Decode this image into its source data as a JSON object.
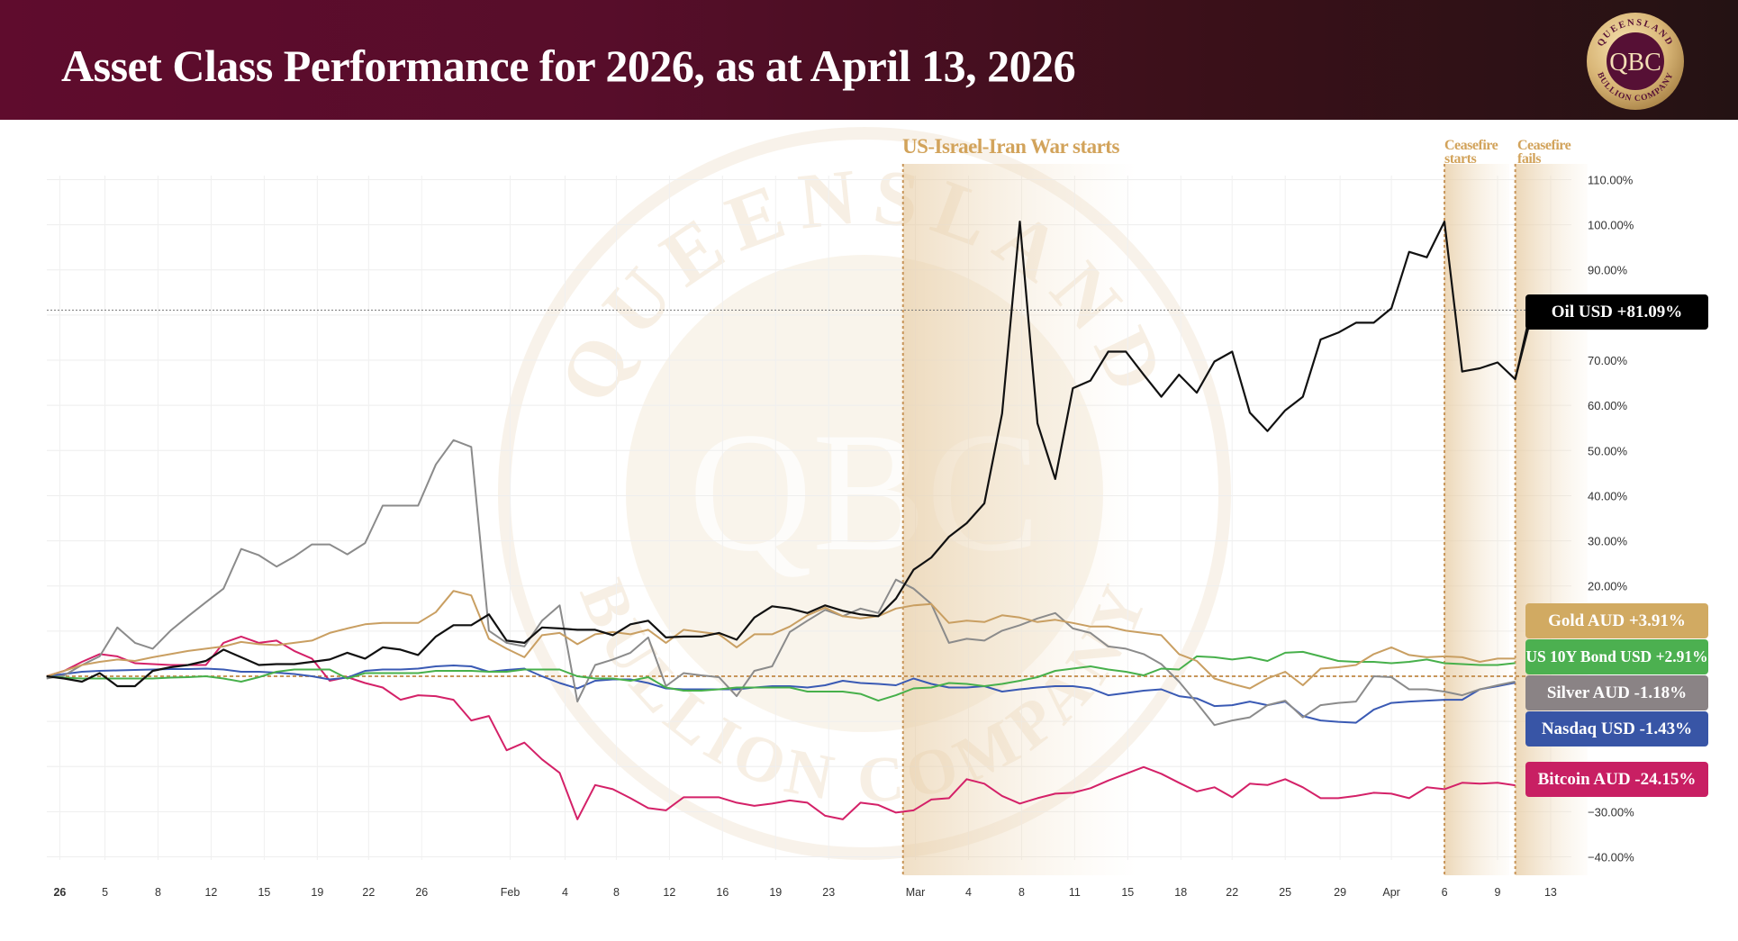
{
  "header": {
    "title": "Asset Class Performance for 2026, as at April 13, 2026"
  },
  "logo": {
    "ring_top": "QUEENSLAND",
    "ring_bottom": "BULLION COMPANY",
    "monogram": "QBC"
  },
  "colors": {
    "header_start": "#5f0c2d",
    "header_end": "#241213",
    "event": "#d2a35b",
    "zero_line": "#c8965a"
  },
  "events": [
    {
      "label": "US-Israel-Iran War starts",
      "index": 48.4
    },
    {
      "label": "Ceasefire starts",
      "index": 79.0
    },
    {
      "label": "Ceasefire fails",
      "index": 83.0
    }
  ],
  "tags": {
    "oil": {
      "text": "Oil USD +81.09%",
      "color": "#000000"
    },
    "gold": {
      "text": "Gold AUD +3.91%",
      "color": "#d1aa62"
    },
    "bond": {
      "text": "US 10Y Bond USD +2.91%",
      "color": "#4cb050"
    },
    "silver": {
      "text": "Silver AUD -1.18%",
      "color": "#8a8385"
    },
    "nasdaq": {
      "text": "Nasdaq USD -1.43%",
      "color": "#3855a6"
    },
    "bitcoin": {
      "text": "Bitcoin AUD -24.15%",
      "color": "#c81f63"
    }
  },
  "chart_data": {
    "type": "line",
    "title": "Asset Class Performance for 2026, as at April 13, 2026",
    "xlabel": "",
    "ylabel": "",
    "ylim": [
      -45,
      112
    ],
    "y_ticks": [
      {
        "value": 110,
        "label": "110.00%"
      },
      {
        "value": 100,
        "label": "100.00%"
      },
      {
        "value": 90,
        "label": "90.00%"
      },
      {
        "value": 70,
        "label": "70.00%"
      },
      {
        "value": 60,
        "label": "60.00%"
      },
      {
        "value": 50,
        "label": "50.00%"
      },
      {
        "value": 40,
        "label": "40.00%"
      },
      {
        "value": 30,
        "label": "30.00%"
      },
      {
        "value": 20,
        "label": "20.00%"
      },
      {
        "value": -30,
        "label": "−30.00%"
      },
      {
        "value": -40,
        "label": "−40.00%"
      }
    ],
    "grid_values": [
      110,
      100,
      90,
      80,
      70,
      60,
      50,
      40,
      30,
      20,
      10,
      0,
      -10,
      -20,
      -30,
      -40
    ],
    "x_ticks": [
      {
        "label": "26",
        "index": 0.75,
        "bold": true
      },
      {
        "label": "5",
        "index": 3.3
      },
      {
        "label": "8",
        "index": 6.3
      },
      {
        "label": "12",
        "index": 9.3
      },
      {
        "label": "15",
        "index": 12.3
      },
      {
        "label": "19",
        "index": 15.3
      },
      {
        "label": "22",
        "index": 18.2
      },
      {
        "label": "26",
        "index": 21.2
      },
      {
        "label": "Feb",
        "index": 26.2
      },
      {
        "label": "4",
        "index": 29.3
      },
      {
        "label": "8",
        "index": 32.2
      },
      {
        "label": "12",
        "index": 35.2
      },
      {
        "label": "16",
        "index": 38.2
      },
      {
        "label": "19",
        "index": 41.2
      },
      {
        "label": "23",
        "index": 44.2
      },
      {
        "label": "Mar",
        "index": 49.1
      },
      {
        "label": "4",
        "index": 52.1
      },
      {
        "label": "8",
        "index": 55.1
      },
      {
        "label": "11",
        "index": 58.1
      },
      {
        "label": "15",
        "index": 61.1
      },
      {
        "label": "18",
        "index": 64.1
      },
      {
        "label": "22",
        "index": 67.0
      },
      {
        "label": "25",
        "index": 70.0
      },
      {
        "label": "29",
        "index": 73.1
      },
      {
        "label": "Apr",
        "index": 76.0
      },
      {
        "label": "6",
        "index": 79.0
      },
      {
        "label": "9",
        "index": 82.0
      },
      {
        "label": "13",
        "index": 85.0
      }
    ],
    "series": [
      {
        "name": "Oil USD",
        "key": "oil",
        "color": "#111111",
        "final": 81.09,
        "values": [
          0,
          -0.5,
          -1.2,
          0.7,
          -2.2,
          -2.2,
          1.2,
          2.0,
          2.5,
          3.4,
          5.9,
          4.2,
          2.5,
          2.7,
          2.7,
          3.2,
          3.7,
          5.2,
          3.9,
          6.4,
          5.9,
          4.7,
          8.8,
          11.3,
          11.3,
          13.7,
          7.9,
          7.4,
          10.8,
          10.6,
          10.3,
          10.3,
          9.1,
          11.5,
          12.3,
          8.6,
          8.8,
          8.8,
          9.6,
          8.1,
          13.0,
          15.5,
          15.0,
          14.0,
          15.7,
          14.5,
          13.7,
          13.3,
          17.2,
          23.6,
          26.3,
          30.9,
          33.9,
          38.3,
          58.2,
          100.7,
          56.0,
          43.7,
          63.8,
          65.5,
          71.9,
          71.9,
          66.8,
          61.9,
          66.8,
          62.8,
          69.7,
          71.9,
          58.4,
          54.3,
          58.9,
          61.9,
          74.6,
          76.1,
          78.3,
          78.3,
          81.5,
          94.0,
          92.8,
          100.7,
          67.5,
          68.2,
          69.5,
          65.8,
          81.09
        ]
      },
      {
        "name": "Gold AUD",
        "key": "gold",
        "color": "#c99f62",
        "final": 3.91,
        "values": [
          0,
          1.2,
          2.5,
          3.2,
          3.7,
          3.4,
          4.2,
          4.9,
          5.6,
          6.1,
          6.6,
          7.6,
          7.1,
          6.9,
          7.4,
          7.9,
          9.6,
          10.6,
          11.5,
          11.8,
          11.8,
          11.8,
          14.2,
          18.9,
          17.9,
          8.3,
          6.1,
          4.2,
          9.1,
          9.6,
          7.1,
          9.3,
          9.8,
          9.3,
          10.3,
          7.4,
          10.3,
          9.8,
          9.3,
          6.4,
          9.3,
          9.3,
          11.0,
          13.5,
          15.2,
          13.3,
          12.8,
          13.3,
          15.0,
          15.7,
          16.0,
          11.8,
          12.3,
          12.0,
          13.5,
          13.0,
          12.0,
          12.5,
          11.8,
          11.0,
          11.0,
          10.1,
          9.6,
          9.1,
          4.9,
          3.4,
          -0.5,
          -1.7,
          -2.7,
          -0.5,
          1.0,
          -2.0,
          1.7,
          2.0,
          2.5,
          4.9,
          6.4,
          4.7,
          4.2,
          4.4,
          4.2,
          3.2,
          3.9,
          3.91
        ]
      },
      {
        "name": "US 10Y Bond USD",
        "key": "bond",
        "color": "#47b04b",
        "final": 2.91,
        "values": [
          0,
          -0.3,
          -0.5,
          -0.5,
          -0.5,
          -0.5,
          -0.5,
          -0.3,
          -0.2,
          0,
          -0.5,
          -1.2,
          -0.2,
          1.0,
          1.5,
          1.5,
          1.5,
          -0.5,
          0.7,
          0.7,
          0.7,
          0.7,
          1.2,
          1.2,
          1.2,
          1.0,
          1.0,
          1.5,
          1.5,
          1.5,
          0,
          -0.5,
          -0.5,
          -1.0,
          -0.2,
          -2.5,
          -3.2,
          -3.2,
          -2.9,
          -2.5,
          -2.5,
          -2.5,
          -2.5,
          -3.4,
          -3.4,
          -3.4,
          -3.9,
          -5.4,
          -4.2,
          -2.7,
          -2.5,
          -1.5,
          -1.7,
          -2.2,
          -1.7,
          -1.0,
          -0.2,
          1.2,
          1.7,
          2.2,
          1.5,
          1.0,
          0.2,
          1.7,
          1.5,
          4.4,
          4.2,
          3.7,
          4.2,
          3.4,
          5.2,
          5.4,
          4.4,
          3.4,
          3.2,
          3.2,
          2.9,
          3.2,
          3.7,
          2.9,
          2.7,
          2.5,
          2.5,
          2.91
        ]
      },
      {
        "name": "Silver AUD",
        "key": "silver",
        "color": "#8b8b8b",
        "final": -1.18,
        "values": [
          -0.5,
          0.2,
          2.5,
          4.4,
          10.8,
          7.4,
          6.1,
          10.1,
          13.3,
          16.4,
          19.4,
          28.2,
          26.8,
          24.3,
          26.5,
          29.2,
          29.2,
          27.0,
          29.5,
          37.8,
          37.8,
          37.8,
          46.9,
          52.3,
          50.8,
          10.1,
          7.4,
          6.6,
          12.3,
          15.7,
          -5.6,
          2.5,
          3.7,
          5.2,
          8.6,
          -2.2,
          0.7,
          0.2,
          -0.2,
          -4.4,
          1.2,
          2.2,
          9.8,
          12.3,
          14.7,
          13.3,
          15.0,
          14.0,
          21.4,
          19.4,
          16.0,
          7.4,
          8.3,
          7.9,
          10.1,
          11.3,
          12.8,
          14.0,
          10.6,
          9.6,
          6.6,
          6.1,
          4.9,
          2.7,
          -1.2,
          -5.9,
          -10.8,
          -9.8,
          -9.1,
          -6.4,
          -5.4,
          -9.1,
          -6.4,
          -5.9,
          -5.6,
          0,
          -0.2,
          -2.9,
          -2.9,
          -3.4,
          -4.2,
          -2.9,
          -2.0,
          -1.18
        ]
      },
      {
        "name": "Nasdaq USD",
        "key": "nasdaq",
        "color": "#3a5ab4",
        "final": -1.43,
        "values": [
          0,
          0.5,
          1,
          1.2,
          1.3,
          1.4,
          1.5,
          1.6,
          1.6,
          1.7,
          1.5,
          1.0,
          1.0,
          0.8,
          0.5,
          0,
          -0.7,
          -0.3,
          1.2,
          1.5,
          1.5,
          1.7,
          2.2,
          2.4,
          2.2,
          1.0,
          1.4,
          1.7,
          0,
          -1.5,
          -2.7,
          -1.0,
          -0.7,
          -0.7,
          -1.5,
          -2.7,
          -2.9,
          -2.9,
          -2.9,
          -2.9,
          -2.5,
          -2.2,
          -2.2,
          -2.5,
          -2.0,
          -1.0,
          -1.5,
          -1.7,
          -2.0,
          -0.5,
          -1.7,
          -2.5,
          -2.5,
          -2.2,
          -3.4,
          -2.9,
          -2.5,
          -2.2,
          -2.2,
          -2.7,
          -4.2,
          -3.7,
          -3.2,
          -2.9,
          -4.4,
          -4.9,
          -6.6,
          -6.4,
          -5.6,
          -6.4,
          -5.6,
          -8.8,
          -9.8,
          -10.1,
          -10.3,
          -7.4,
          -5.9,
          -5.6,
          -5.4,
          -5.2,
          -5.2,
          -2.9,
          -2.2,
          -1.43
        ]
      },
      {
        "name": "Bitcoin AUD",
        "key": "bitcoin",
        "color": "#d42168",
        "final": -24.15,
        "values": [
          0,
          1.2,
          3.2,
          4.9,
          4.4,
          2.9,
          2.7,
          2.5,
          2.5,
          2.5,
          7.4,
          8.8,
          7.4,
          7.9,
          5.6,
          3.9,
          -1.0,
          -0.2,
          -1.5,
          -2.5,
          -5.2,
          -4.2,
          -4.4,
          -5.2,
          -9.8,
          -8.8,
          -16.4,
          -14.7,
          -18.4,
          -21.4,
          -31.7,
          -24.1,
          -25.0,
          -27.0,
          -29.2,
          -29.7,
          -26.8,
          -26.8,
          -26.8,
          -28.0,
          -28.7,
          -28.2,
          -27.5,
          -28.0,
          -30.9,
          -31.7,
          -28.0,
          -28.5,
          -30.2,
          -29.7,
          -27.3,
          -27.0,
          -22.8,
          -23.8,
          -26.5,
          -28.2,
          -27.0,
          -26.0,
          -25.8,
          -24.8,
          -23.1,
          -21.6,
          -20.1,
          -21.6,
          -23.6,
          -25.5,
          -24.6,
          -26.8,
          -23.8,
          -24.1,
          -22.8,
          -24.6,
          -27.0,
          -27.0,
          -26.5,
          -25.8,
          -26.0,
          -27.0,
          -24.6,
          -25.0,
          -23.6,
          -23.8,
          -23.6,
          -24.15
        ]
      }
    ],
    "legend": "right"
  }
}
